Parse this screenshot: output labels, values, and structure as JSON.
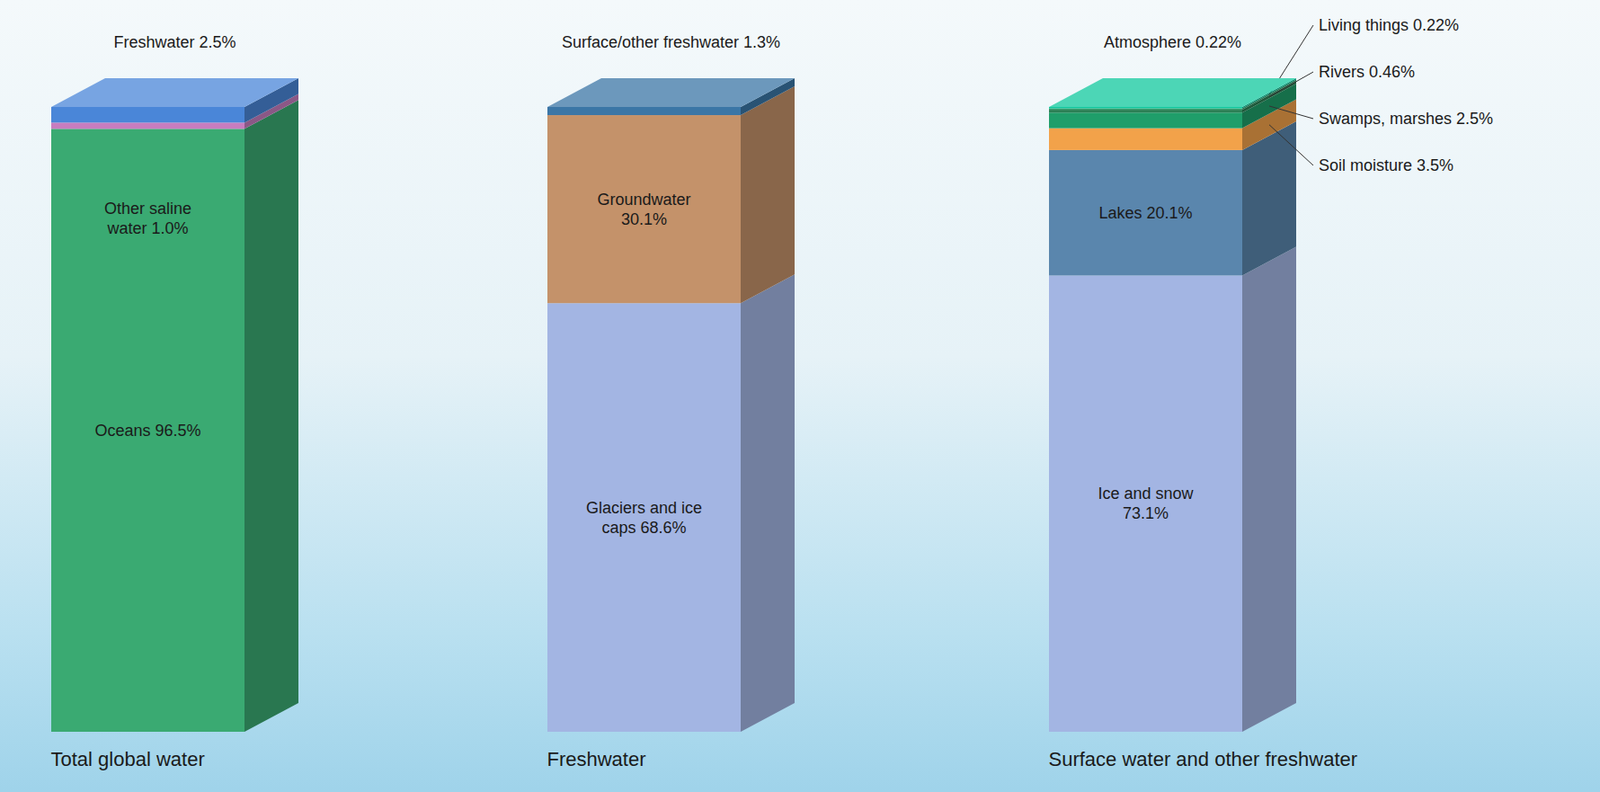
{
  "chart_data": [
    {
      "type": "bar",
      "stacked": true,
      "data_labels": true,
      "tick_labels": "x",
      "categories": [
        "Total global water"
      ],
      "ylim": [
        0,
        100
      ],
      "series": [
        {
          "name": "Oceans",
          "color": "#3aaa72",
          "values": [
            96.5
          ],
          "value_labels": [
            "96.5%"
          ]
        },
        {
          "name": "Other saline water",
          "color": "#c77dc0",
          "values": [
            1.0
          ],
          "value_labels": [
            "1.0%"
          ]
        },
        {
          "name": "Freshwater",
          "color": "#4a86d8",
          "values": [
            2.5
          ],
          "value_labels": [
            "2.5%"
          ]
        }
      ]
    },
    {
      "type": "bar",
      "stacked": true,
      "data_labels": true,
      "tick_labels": "x",
      "categories": [
        "Freshwater"
      ],
      "ylim": [
        0,
        100
      ],
      "series": [
        {
          "name": "Glaciers and ice caps",
          "color": "#a3b5e3",
          "values": [
            68.6
          ],
          "value_labels": [
            "68.6%"
          ]
        },
        {
          "name": "Groundwater",
          "color": "#c4926a",
          "values": [
            30.1
          ],
          "value_labels": [
            "30.1%"
          ]
        },
        {
          "name": "Surface/other freshwater",
          "color": "#3b76a6",
          "values": [
            1.3
          ],
          "value_labels": [
            "1.3%"
          ]
        }
      ]
    },
    {
      "type": "bar",
      "stacked": true,
      "data_labels": true,
      "tick_labels": "x",
      "categories": [
        "Surface water and other freshwater"
      ],
      "ylim": [
        0,
        100.1
      ],
      "series": [
        {
          "name": "Ice and snow",
          "color": "#a3b5e3",
          "values": [
            73.1
          ],
          "value_labels": [
            "73.1%"
          ]
        },
        {
          "name": "Lakes",
          "color": "#5a86ad",
          "values": [
            20.1
          ],
          "value_labels": [
            "20.1%"
          ]
        },
        {
          "name": "Soil moisture",
          "color": "#f2a24a",
          "values": [
            3.5
          ],
          "value_labels": [
            "3.5%"
          ]
        },
        {
          "name": "Swamps, marshes",
          "color": "#1f9e6a",
          "values": [
            2.5
          ],
          "value_labels": [
            "2.5%"
          ]
        },
        {
          "name": "Rivers",
          "color": "#2c7f55",
          "values": [
            0.46
          ],
          "value_labels": [
            "0.46%"
          ]
        },
        {
          "name": "Living things",
          "color": "#36a070",
          "values": [
            0.22
          ],
          "value_labels": [
            "0.22%"
          ]
        },
        {
          "name": "Atmosphere",
          "color": "#10c89e",
          "values": [
            0.22
          ],
          "value_labels": [
            "0.22%"
          ]
        }
      ]
    }
  ]
}
